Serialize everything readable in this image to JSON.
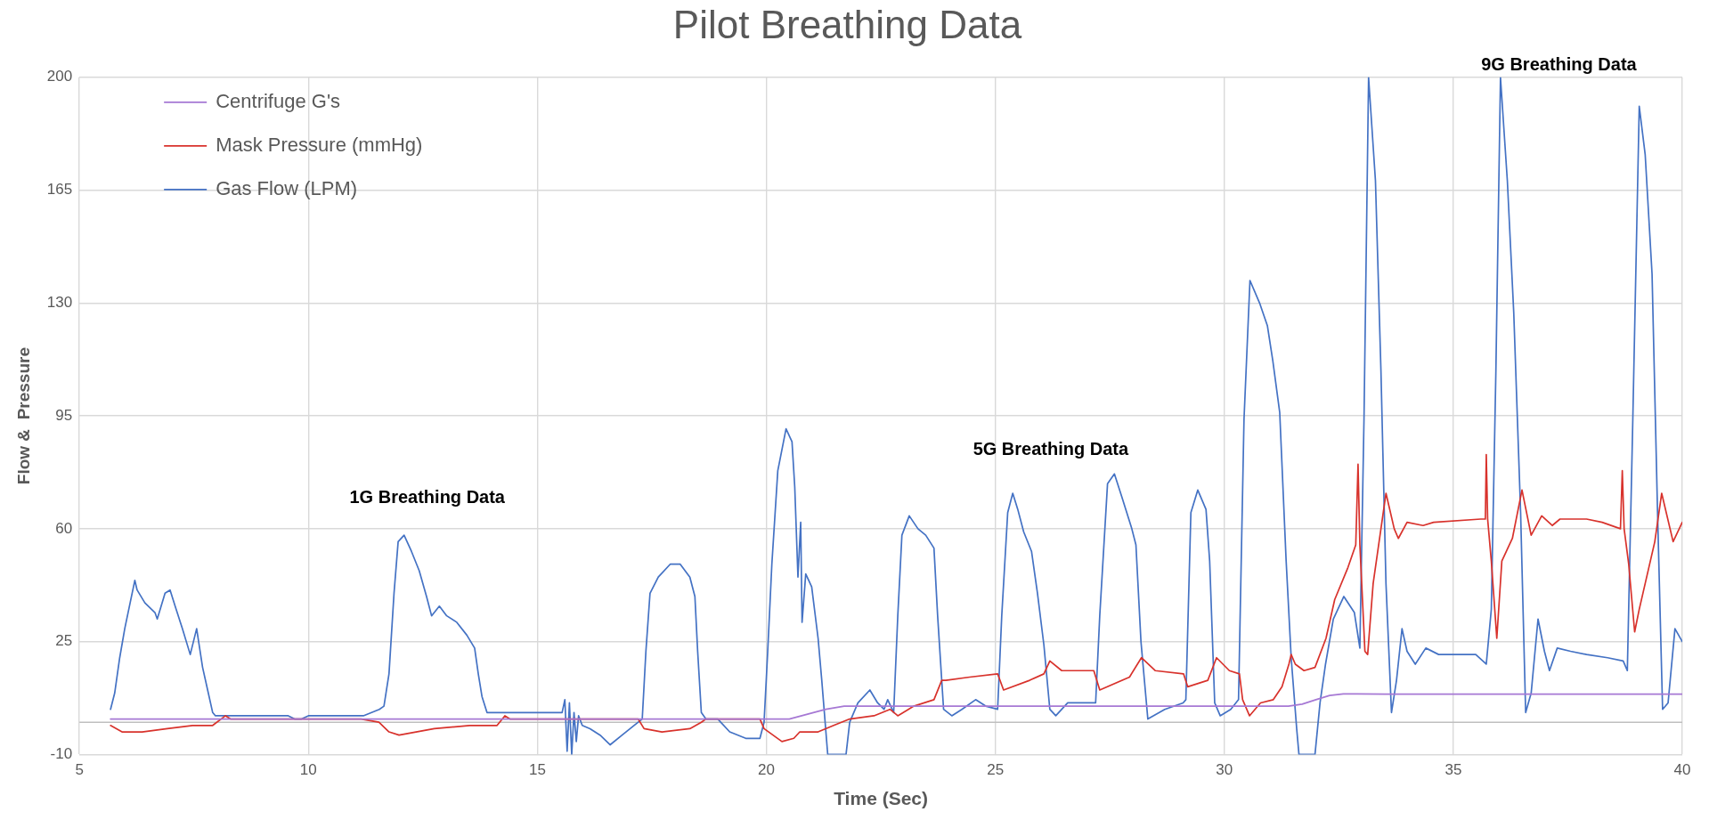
{
  "chart_data": {
    "type": "line",
    "title": "Pilot Breathing Data",
    "xlabel": "Time (Sec)",
    "ylabel": "Flow &  Pressure",
    "xlim": [
      5,
      40
    ],
    "xticks": [
      5,
      10,
      15,
      20,
      25,
      30,
      35,
      40
    ],
    "ylim": [
      -10,
      200
    ],
    "yticks": [
      -10,
      25,
      60,
      95,
      130,
      165,
      200
    ],
    "grid": true,
    "legend": "top left",
    "marker": "none",
    "line_style": "solid",
    "ref_lines": [
      {
        "axis": "y",
        "value": 0,
        "color": "#bfbfbf"
      }
    ],
    "annotations": [
      "1G Breathing Data",
      "5G Breathing Data",
      "9G Breathing Data"
    ],
    "series": [
      {
        "name": "Centrifuge G's",
        "color": "#a678d4",
        "x": [
          5.68,
          20.0,
          20.5,
          20.9,
          21.3,
          21.7,
          22.2,
          31.4,
          31.7,
          32.0,
          32.3,
          32.6,
          33.5,
          40
        ],
        "values": [
          1,
          1,
          1,
          2.5,
          4,
          5,
          5,
          5,
          5.6,
          7,
          8.3,
          8.8,
          8.7,
          8.7
        ]
      },
      {
        "name": "Mask Pressure (mmHg)",
        "color": "#d8322c",
        "x": [
          5.68,
          5.93,
          6.37,
          6.92,
          7.47,
          7.91,
          8.19,
          8.3,
          9.67,
          11.15,
          11.54,
          11.76,
          11.98,
          12.75,
          13.52,
          14.12,
          14.29,
          14.4,
          16.78,
          17.2,
          17.33,
          17.72,
          18.33,
          18.58,
          18.68,
          19.86,
          19.95,
          20.34,
          20.6,
          20.73,
          21.13,
          21.47,
          21.82,
          22.35,
          22.7,
          22.87,
          23.22,
          23.66,
          23.83,
          23.92,
          24.44,
          25.05,
          25.18,
          25.75,
          26.06,
          26.19,
          26.45,
          27.15,
          27.28,
          27.93,
          28.19,
          28.49,
          29.11,
          29.2,
          29.64,
          29.83,
          30.11,
          30.33,
          30.4,
          30.55,
          30.79,
          31.07,
          31.26,
          31.41,
          31.46,
          31.55,
          31.74,
          31.98,
          32.22,
          32.41,
          32.7,
          32.87,
          32.92,
          32.96,
          33.07,
          33.13,
          33.25,
          33.42,
          33.53,
          33.71,
          33.8,
          33.99,
          34.34,
          34.57,
          35.6,
          35.7,
          35.72,
          35.75,
          35.83,
          35.95,
          36.06,
          36.29,
          36.5,
          36.7,
          36.93,
          37.16,
          37.33,
          37.91,
          38.25,
          38.65,
          38.69,
          38.73,
          38.83,
          38.96,
          39.06,
          39.4,
          39.55,
          39.8,
          40
        ],
        "values": [
          -1,
          -3,
          -3,
          -2,
          -1,
          -1,
          2,
          1,
          1,
          1,
          0,
          -3,
          -4,
          -2,
          -1,
          -1,
          2,
          1,
          1,
          1,
          -2,
          -3,
          -2,
          0,
          1,
          1,
          -2,
          -6,
          -5,
          -3,
          -3,
          -1,
          1,
          2,
          4,
          2,
          5,
          7,
          13,
          13,
          14,
          15,
          10,
          13,
          15,
          19,
          16,
          16,
          10,
          14,
          20,
          16,
          15,
          11,
          13,
          20,
          16,
          15,
          7,
          2,
          6,
          7,
          11,
          18,
          21,
          18,
          16,
          17,
          26,
          38,
          48,
          55,
          80,
          55,
          22,
          21,
          43,
          60,
          71,
          60,
          57,
          62,
          61,
          62,
          63,
          63,
          83,
          63,
          50,
          26,
          50,
          57,
          72,
          58,
          64,
          61,
          63,
          63,
          62,
          60,
          78,
          60,
          49,
          28,
          35,
          56,
          71,
          56,
          62
        ]
      },
      {
        "name": "Gas Flow (LPM)",
        "color": "#4472c4",
        "x": [
          5.68,
          5.77,
          5.88,
          5.99,
          6.21,
          6.26,
          6.43,
          6.65,
          6.7,
          6.87,
          6.98,
          7.09,
          7.25,
          7.42,
          7.56,
          7.69,
          7.8,
          7.91,
          7.97,
          8.5,
          9.2,
          9.56,
          9.7,
          9.85,
          10.0,
          10.6,
          11.2,
          11.55,
          11.65,
          11.76,
          11.87,
          11.96,
          12.09,
          12.25,
          12.42,
          12.58,
          12.69,
          12.86,
          13.02,
          13.24,
          13.46,
          13.63,
          13.71,
          13.79,
          13.9,
          14.5,
          15.0,
          15.54,
          15.6,
          15.65,
          15.7,
          15.75,
          15.8,
          15.85,
          15.9,
          15.98,
          16.15,
          16.37,
          16.59,
          16.85,
          17.11,
          17.29,
          17.37,
          17.46,
          17.64,
          17.9,
          18.12,
          18.33,
          18.44,
          18.5,
          18.58,
          18.68,
          18.94,
          19.2,
          19.55,
          19.86,
          19.95,
          20.03,
          20.12,
          20.25,
          20.43,
          20.56,
          20.62,
          20.69,
          20.75,
          20.78,
          20.86,
          20.99,
          21.13,
          21.21,
          21.34,
          21.74,
          21.82,
          22.0,
          22.26,
          22.43,
          22.57,
          22.65,
          22.78,
          22.87,
          22.96,
          23.12,
          23.31,
          23.48,
          23.66,
          23.74,
          23.87,
          24.05,
          24.27,
          24.57,
          24.79,
          25.05,
          25.14,
          25.27,
          25.38,
          25.49,
          25.62,
          25.79,
          25.92,
          26.06,
          26.19,
          26.32,
          26.58,
          26.89,
          27.19,
          27.28,
          27.45,
          27.6,
          27.76,
          27.98,
          28.07,
          28.18,
          28.33,
          28.7,
          29.1,
          29.16,
          29.27,
          29.42,
          29.6,
          29.68,
          29.79,
          29.91,
          30.14,
          30.31,
          30.43,
          30.56,
          30.77,
          30.94,
          31.06,
          31.21,
          31.35,
          31.46,
          31.58,
          31.63,
          31.98,
          32.09,
          32.21,
          32.38,
          32.61,
          32.84,
          32.96,
          33.05,
          33.15,
          33.3,
          33.42,
          33.53,
          33.65,
          33.76,
          33.88,
          33.99,
          34.17,
          34.4,
          34.68,
          35.03,
          35.49,
          35.72,
          35.83,
          35.93,
          36.03,
          36.18,
          36.32,
          36.47,
          36.58,
          36.7,
          36.85,
          36.99,
          37.1,
          37.27,
          37.56,
          37.91,
          38.37,
          38.71,
          38.8,
          38.92,
          39.06,
          39.19,
          39.34,
          39.46,
          39.57,
          39.69,
          39.84,
          40
        ],
        "values": [
          4,
          9,
          20,
          29,
          44,
          41,
          37,
          34,
          32,
          40,
          41,
          36,
          29,
          21,
          29,
          17,
          10,
          3,
          2,
          2,
          2,
          2,
          1,
          1,
          2,
          2,
          2,
          4,
          5,
          15,
          40,
          56,
          58,
          53,
          47,
          39,
          33,
          36,
          33,
          31,
          27,
          23,
          15,
          8,
          3,
          3,
          3,
          3,
          7,
          -9,
          6,
          -10,
          3,
          -6,
          2,
          -1,
          -2,
          -4,
          -7,
          -4,
          -1,
          1,
          22,
          40,
          45,
          49,
          49,
          45,
          39,
          22,
          3,
          1,
          1,
          -3,
          -5,
          -5,
          0,
          22,
          49,
          78,
          91,
          87,
          73,
          45,
          62,
          31,
          46,
          42,
          26,
          13,
          -10,
          -10,
          0,
          6,
          10,
          6,
          4,
          7,
          3,
          33,
          58,
          64,
          60,
          58,
          54,
          33,
          4,
          2,
          4,
          7,
          5,
          4,
          33,
          65,
          71,
          66,
          59,
          53,
          40,
          24,
          4,
          2,
          6,
          6,
          6,
          33,
          74,
          77,
          70,
          60,
          55,
          25,
          1,
          4,
          6,
          7,
          65,
          72,
          66,
          50,
          6,
          2,
          4,
          7,
          94,
          137,
          130,
          123,
          112,
          96,
          50,
          20,
          -2,
          -10,
          -10,
          6,
          18,
          32,
          39,
          34,
          23,
          94,
          200,
          168,
          109,
          43,
          3,
          13,
          29,
          22,
          18,
          23,
          21,
          21,
          21,
          18,
          35,
          109,
          200,
          168,
          127,
          65,
          3,
          9,
          32,
          22,
          16,
          23,
          22,
          21,
          20,
          19,
          16,
          94,
          191,
          176,
          139,
          65,
          4,
          6,
          29,
          25
        ]
      }
    ]
  }
}
